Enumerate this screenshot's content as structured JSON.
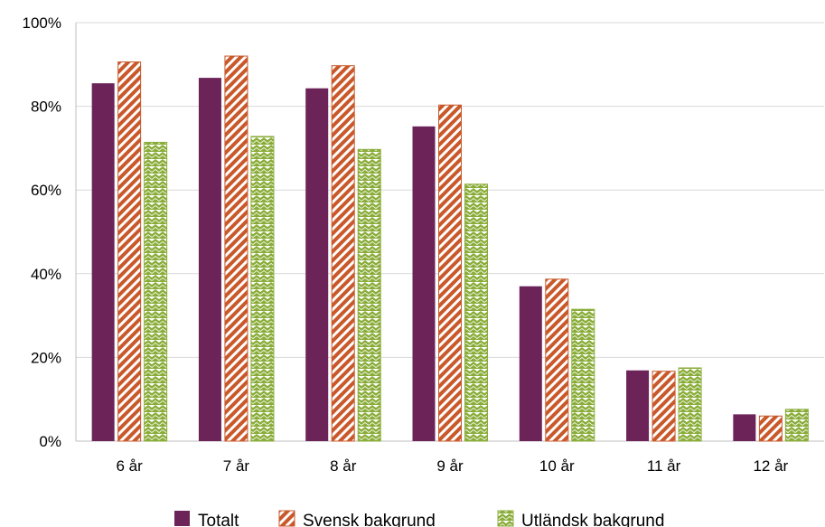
{
  "chart_data": {
    "type": "bar",
    "categories": [
      "6 år",
      "7 år",
      "8 år",
      "9 år",
      "10 år",
      "11 år",
      "12 år"
    ],
    "series": [
      {
        "name": "Totalt",
        "values": [
          85.5,
          86.8,
          84.3,
          75.2,
          37.0,
          16.9,
          6.4
        ],
        "color": "#6b2358",
        "pattern": "solid"
      },
      {
        "name": "Svensk bakgrund",
        "values": [
          90.6,
          92.0,
          89.7,
          80.3,
          38.7,
          16.7,
          6.0
        ],
        "color": "#c9582a",
        "pattern": "diagonal-stripes"
      },
      {
        "name": "Utländsk bakgrund",
        "values": [
          71.4,
          72.8,
          69.7,
          61.4,
          31.5,
          17.5,
          7.6
        ],
        "color": "#8aad3a",
        "pattern": "zigzag"
      }
    ],
    "ylim": [
      0,
      100
    ],
    "yticks": [
      "0%",
      "20%",
      "40%",
      "60%",
      "80%",
      "100%"
    ],
    "grid": true,
    "legend_position": "bottom"
  }
}
